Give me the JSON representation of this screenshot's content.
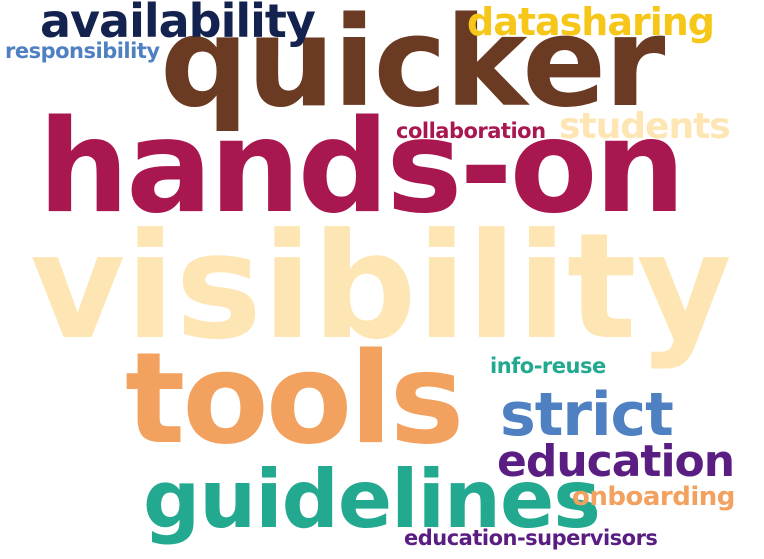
{
  "words": [
    {
      "key": "visibility",
      "text": "visibility",
      "color": "#fde6b3"
    },
    {
      "key": "quicker",
      "text": "quicker",
      "color": "#6b3a22"
    },
    {
      "key": "hands_on",
      "text": "hands-on",
      "color": "#a8174f"
    },
    {
      "key": "tools",
      "text": "tools",
      "color": "#f2a15e"
    },
    {
      "key": "guidelines",
      "text": "guidelines",
      "color": "#23a98f"
    },
    {
      "key": "strict",
      "text": "strict",
      "color": "#4f80c2"
    },
    {
      "key": "education",
      "text": "education",
      "color": "#5a1e82"
    },
    {
      "key": "availability",
      "text": "availability",
      "color": "#14224f"
    },
    {
      "key": "datasharing",
      "text": "datasharing",
      "color": "#f6c619"
    },
    {
      "key": "students",
      "text": "students",
      "color": "#fde6b3"
    },
    {
      "key": "collaboration",
      "text": "collaboration",
      "color": "#a8174f"
    },
    {
      "key": "responsibility",
      "text": "responsibility",
      "color": "#4f80c2"
    },
    {
      "key": "info_reuse",
      "text": "info-reuse",
      "color": "#23a98f"
    },
    {
      "key": "onboarding",
      "text": "onboarding",
      "color": "#f2a15e"
    },
    {
      "key": "education_supervisors",
      "text": "education-supervisors",
      "color": "#5a1e82"
    }
  ]
}
